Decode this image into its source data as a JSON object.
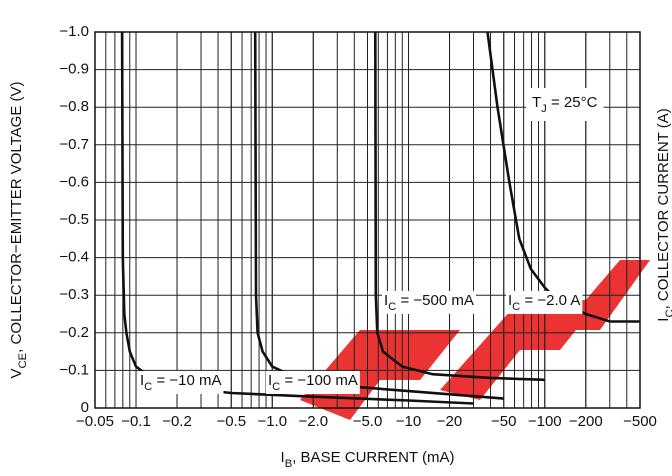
{
  "chart_data": {
    "type": "line",
    "x_label": {
      "symbol": "I",
      "sub": "B",
      "text": ", BASE CURRENT (mA)"
    },
    "y_label": {
      "symbol": "V",
      "sub": "CE",
      "text": ", COLLECTOR−EMITTER VOLTAGE (V)"
    },
    "y2_label": {
      "symbol": "I",
      "sub": "C",
      "text": ", COLLECTOR CURRENT (A)"
    },
    "annotation": {
      "symbol": "T",
      "sub": "J",
      "text": " = 25°C"
    },
    "x_log": true,
    "grid": true,
    "xlim": [
      -0.05,
      -500
    ],
    "ylim": [
      0,
      -1.0
    ],
    "xticks": [
      {
        "value": -0.05,
        "label": "−0.05"
      },
      {
        "value": -0.1,
        "label": "−0.1"
      },
      {
        "value": -0.2,
        "label": "−0.2"
      },
      {
        "value": -0.5,
        "label": "−0.5"
      },
      {
        "value": -1.0,
        "label": "−1.0"
      },
      {
        "value": -2.0,
        "label": "−2.0"
      },
      {
        "value": -5.0,
        "label": "−5.0"
      },
      {
        "value": -10,
        "label": "−10"
      },
      {
        "value": -20,
        "label": "−20"
      },
      {
        "value": -50,
        "label": "−50"
      },
      {
        "value": -100,
        "label": "−100"
      },
      {
        "value": -200,
        "label": "−200"
      },
      {
        "value": -500,
        "label": "−500"
      }
    ],
    "yticks": [
      0,
      {
        "value": -0.1,
        "label": "−0.1"
      },
      {
        "value": -0.2,
        "label": "−0.2"
      },
      {
        "value": -0.3,
        "label": "−0.3"
      },
      {
        "value": -0.4,
        "label": "−0.4"
      },
      {
        "value": -0.5,
        "label": "−0.5"
      },
      {
        "value": -0.6,
        "label": "−0.6"
      },
      {
        "value": -0.7,
        "label": "−0.7"
      },
      {
        "value": -0.8,
        "label": "−0.8"
      },
      {
        "value": -0.9,
        "label": "−0.9"
      },
      {
        "value": -1.0,
        "label": "−1.0"
      }
    ],
    "series": [
      {
        "label": {
          "symbol": "I",
          "sub": "C",
          "text": " = −10 mA"
        },
        "color": "#111111",
        "x": [
          -0.079,
          -0.08,
          -0.082,
          -0.085,
          -0.09,
          -0.1,
          -0.13,
          -0.2,
          -0.5,
          -2,
          -10,
          -30
        ],
        "values": [
          -1.0,
          -0.4,
          -0.25,
          -0.2,
          -0.15,
          -0.11,
          -0.08,
          -0.055,
          -0.04,
          -0.03,
          -0.02,
          -0.012
        ]
      },
      {
        "label": {
          "symbol": "I",
          "sub": "C",
          "text": " = −100 mA"
        },
        "color": "#111111",
        "x": [
          -0.75,
          -0.76,
          -0.78,
          -0.85,
          -1.0,
          -1.5,
          -3,
          -10,
          -50
        ],
        "values": [
          -1.0,
          -0.3,
          -0.2,
          -0.15,
          -0.11,
          -0.08,
          -0.06,
          -0.045,
          -0.025
        ]
      },
      {
        "label": {
          "symbol": "I",
          "sub": "C",
          "text": " = −500 mA"
        },
        "color": "#111111",
        "x": [
          -5.7,
          -5.75,
          -5.9,
          -6.5,
          -9,
          -15,
          -40,
          -100
        ],
        "values": [
          -1.0,
          -0.3,
          -0.2,
          -0.15,
          -0.11,
          -0.09,
          -0.08,
          -0.075
        ]
      },
      {
        "label": {
          "symbol": "I",
          "sub": "C",
          "text": " = −2.0 A"
        },
        "color": "#111111",
        "x": [
          -38,
          -45,
          -55,
          -65,
          -79,
          -100,
          -130,
          -200,
          -300,
          -500
        ],
        "values": [
          -1.0,
          -0.8,
          -0.6,
          -0.45,
          -0.37,
          -0.32,
          -0.28,
          -0.25,
          -0.23,
          -0.23
        ]
      }
    ]
  }
}
